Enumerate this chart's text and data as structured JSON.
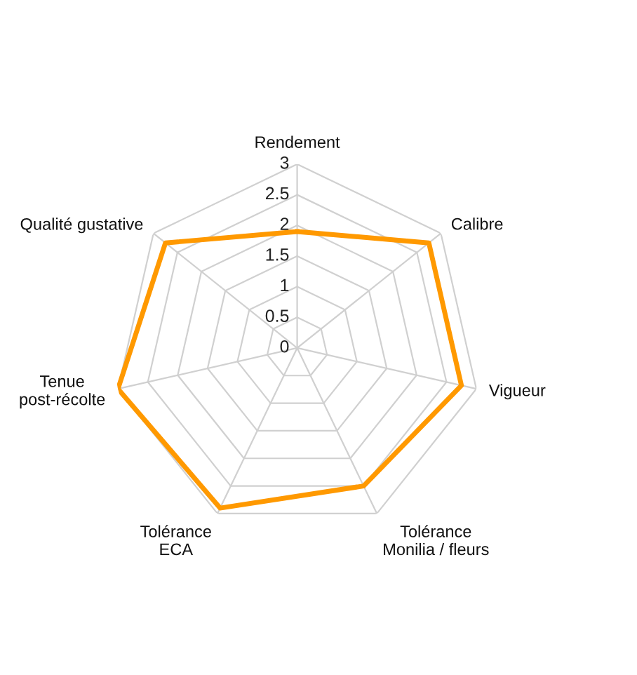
{
  "chart_data": {
    "type": "radar",
    "categories": [
      "Rendement",
      "Calibre",
      "Vigueur",
      "Tolérance\nMonilia / fleurs",
      "Tolérance\nECA",
      "Tenue\npost-récolte",
      "Qualité gustative"
    ],
    "series": [
      {
        "color": "#ff9900",
        "values": [
          1.9,
          2.75,
          2.75,
          2.5,
          2.9,
          3,
          2.75
        ]
      }
    ],
    "ylim": [
      0,
      3
    ],
    "yticks": [
      0,
      0.5,
      1,
      1.5,
      2,
      2.5,
      3
    ],
    "grid": true
  }
}
